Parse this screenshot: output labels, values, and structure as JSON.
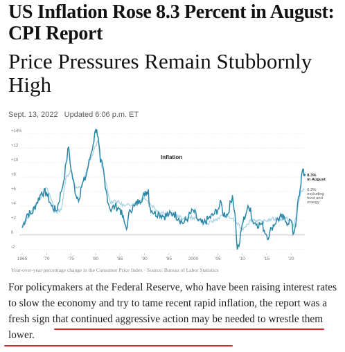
{
  "article": {
    "headline": "US Inflation Rose 8.3 Percent in August: CPI Report",
    "subheadline": "Price Pressures Remain Stubbornly High",
    "date": "Sept. 13, 2022",
    "updated": "Updated 6:06 p.m. ET",
    "source_line": "Year-over-year percentage change in the Consumer Price Index  ·  Source: Bureau of Labor Statistics",
    "body_part1": "For policymakers at the Federal Reserve, who have been raising interest rates to slow the economy and try to tame recent rapid inflation, ",
    "body_highlight": "the report was a fresh sign that continued aggressive action may be needed to wrestle them lower."
  },
  "colors": {
    "headline": "#121212",
    "series_headline": "#2b87a8",
    "series_core": "#a9d2e3",
    "grid": "#e6e6e6",
    "highlight_underline": "#d8262b"
  },
  "chart_data": {
    "type": "line",
    "title": "Inflation",
    "x_tick_labels": [
      "1965",
      "'70",
      "'75",
      "'80",
      "'85",
      "'90",
      "'95",
      "2000",
      "'05",
      "'10",
      "'15",
      "'20"
    ],
    "y_tick_labels": [
      "+14%",
      "+12",
      "+10",
      "+8",
      "+6",
      "+4",
      "+2",
      "0",
      "-2"
    ],
    "xlim": [
      1965,
      2022.8
    ],
    "ylim": [
      -2.5,
      14.5
    ],
    "grid": true,
    "series": [
      {
        "name": "8.3% in August",
        "role": "headline",
        "x": [
          1965,
          1966,
          1967,
          1968,
          1969,
          1970,
          1971,
          1972,
          1973,
          1973.5,
          1974,
          1974.5,
          1975,
          1976,
          1976.7,
          1977,
          1978,
          1979,
          1979.5,
          1980,
          1980.25,
          1980.7,
          1981,
          1981.5,
          1982,
          1983,
          1984,
          1985,
          1986,
          1986.5,
          1987,
          1988,
          1989,
          1990,
          1990.8,
          1991,
          1992,
          1993,
          1994,
          1995,
          1996,
          1997,
          1998,
          1999,
          2000,
          2001,
          2002,
          2003,
          2004,
          2005,
          2005.7,
          2006,
          2007,
          2008,
          2008.5,
          2009,
          2009.5,
          2010,
          2011,
          2011.7,
          2012,
          2013,
          2014,
          2015,
          2015.5,
          2016,
          2017,
          2018,
          2019,
          2020,
          2020.4,
          2020.9,
          2021,
          2021.3,
          2021.7,
          2022,
          2022.2,
          2022.5,
          2022.7
        ],
        "values": [
          1.0,
          2.9,
          3.0,
          4.5,
          5.9,
          5.8,
          4.0,
          3.3,
          6.0,
          7.5,
          10.0,
          12.2,
          9.0,
          5.5,
          5.0,
          6.5,
          8.0,
          11.0,
          12.5,
          14.5,
          14.6,
          12.5,
          10.0,
          9.5,
          6.5,
          3.5,
          4.0,
          3.6,
          1.5,
          1.1,
          3.5,
          4.0,
          4.8,
          5.5,
          6.3,
          4.0,
          3.0,
          3.0,
          2.6,
          2.8,
          3.0,
          2.3,
          1.6,
          2.5,
          3.4,
          2.0,
          1.5,
          2.2,
          2.7,
          3.5,
          4.5,
          3.0,
          2.8,
          5.5,
          3.0,
          -2.0,
          -1.0,
          1.5,
          3.5,
          3.8,
          2.0,
          1.5,
          1.5,
          0.0,
          -0.2,
          1.0,
          2.0,
          2.5,
          1.8,
          2.0,
          0.1,
          1.4,
          1.7,
          4.2,
          5.4,
          7.0,
          8.5,
          9.1,
          8.3
        ]
      },
      {
        "name": "6.3% excluding food and energy",
        "role": "core",
        "x": [
          1965,
          1967,
          1969,
          1970,
          1972,
          1973,
          1974,
          1975,
          1976,
          1977,
          1978,
          1979,
          1980,
          1980.5,
          1981,
          1982,
          1983,
          1984,
          1986,
          1988,
          1990,
          1991,
          1993,
          1995,
          1998,
          2000,
          2003,
          2006,
          2008,
          2010,
          2011,
          2012,
          2014,
          2016,
          2018,
          2019,
          2020,
          2020.5,
          2021,
          2021.5,
          2022,
          2022.3,
          2022.7
        ],
        "values": [
          1.2,
          3.3,
          5.5,
          6.5,
          3.1,
          3.5,
          8.0,
          9.0,
          6.5,
          6.5,
          8.5,
          10.5,
          12.3,
          13.0,
          10.5,
          7.5,
          4.5,
          4.8,
          4.0,
          4.4,
          5.2,
          4.4,
          3.2,
          3.0,
          2.3,
          2.4,
          1.5,
          2.7,
          2.3,
          0.8,
          1.5,
          2.2,
          1.8,
          2.2,
          2.2,
          2.3,
          2.0,
          1.2,
          2.5,
          4.5,
          6.0,
          6.0,
          6.3
        ]
      }
    ],
    "annotations": {
      "headline_label": "8.3%",
      "headline_label_sub": "in August",
      "core_label": "6.3%",
      "core_label_sub": [
        "excluding",
        "food and",
        "energy"
      ]
    }
  }
}
